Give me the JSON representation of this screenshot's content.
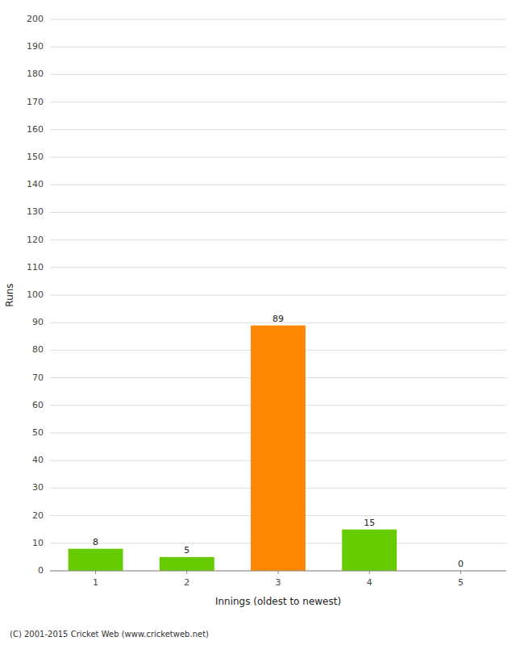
{
  "chart_data": {
    "type": "bar",
    "categories": [
      1,
      2,
      3,
      4,
      5
    ],
    "values": [
      8,
      5,
      89,
      15,
      0
    ],
    "colors": [
      "#66cc00",
      "#66cc00",
      "#ff8800",
      "#66cc00",
      "#66cc00"
    ],
    "x_label": "Innings (oldest to newest)",
    "y_label": "Runs",
    "ylim": [
      0,
      200
    ],
    "yticks": [
      0,
      10,
      20,
      30,
      40,
      50,
      60,
      70,
      80,
      90,
      100,
      110,
      120,
      130,
      140,
      150,
      160,
      170,
      180,
      190,
      200
    ],
    "grid": true,
    "data_labels": true,
    "annotations": [
      "(C) 2001-2015 Cricket Web (www.cricketweb.net)"
    ]
  }
}
